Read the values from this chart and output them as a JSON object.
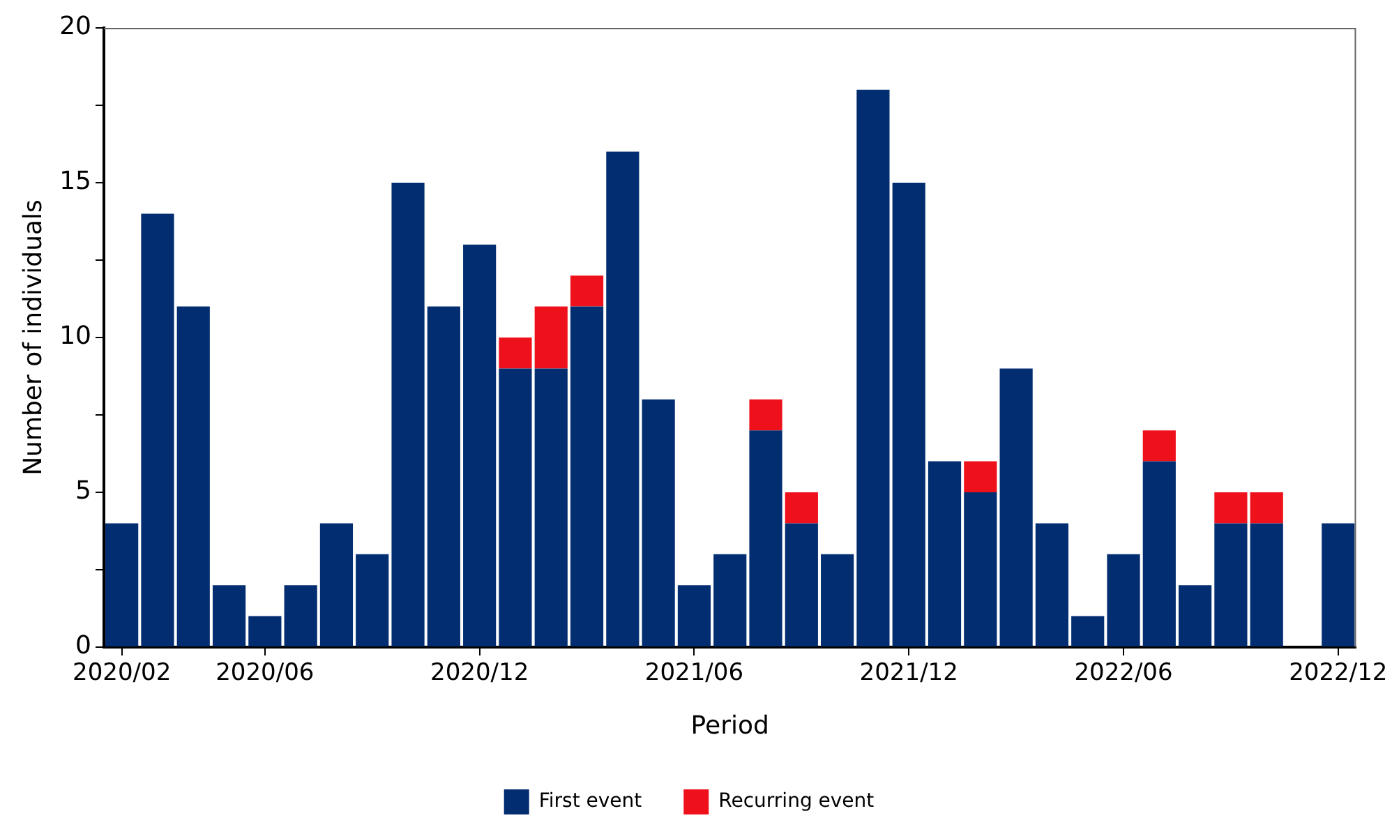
{
  "chart_data": {
    "type": "bar",
    "stacked": true,
    "xlabel": "Period",
    "ylabel": "Number of individuals",
    "categories": [
      "2020/02",
      null,
      null,
      null,
      "2020/06",
      null,
      null,
      null,
      null,
      null,
      "2020/12",
      null,
      null,
      null,
      null,
      null,
      "2021/06",
      null,
      null,
      null,
      null,
      null,
      "2021/12",
      null,
      null,
      null,
      null,
      null,
      "2022/06",
      null,
      null,
      null,
      null,
      null,
      "2022/12"
    ],
    "series": [
      {
        "name": "First event",
        "color": "#022d70",
        "values": [
          4,
          14,
          11,
          2,
          1,
          2,
          4,
          3,
          15,
          11,
          13,
          9,
          9,
          11,
          16,
          8,
          2,
          3,
          7,
          4,
          3,
          18,
          15,
          6,
          5,
          9,
          4,
          1,
          3,
          6,
          2,
          4,
          4,
          0,
          4
        ]
      },
      {
        "name": "Recurring event",
        "color": "#ee111c",
        "values": [
          0,
          0,
          0,
          0,
          0,
          0,
          0,
          0,
          0,
          0,
          0,
          1,
          2,
          1,
          0,
          0,
          0,
          0,
          1,
          1,
          0,
          0,
          0,
          0,
          1,
          0,
          0,
          0,
          0,
          1,
          0,
          1,
          1,
          0,
          0
        ]
      }
    ],
    "ylim": [
      0,
      20
    ],
    "yticks": [
      0,
      {
        "value": 2.5,
        "label": null
      },
      5,
      {
        "value": 7.5,
        "label": null
      },
      10,
      {
        "value": 12.5,
        "label": null
      },
      15,
      {
        "value": 17.5,
        "label": null
      },
      20
    ],
    "legend": "bottom"
  }
}
